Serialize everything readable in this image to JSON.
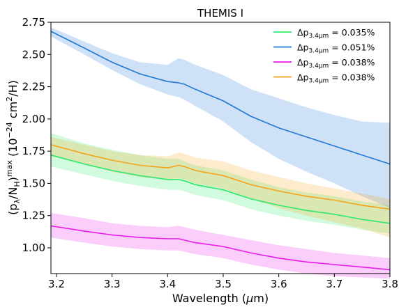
{
  "chart_data": {
    "type": "line",
    "title": "THEMIS I",
    "xlabel": "Wavelength (μm)",
    "ylabel": "(pλ/NH)max (10−24 cm2/H)",
    "xlim": [
      3.19,
      3.8
    ],
    "ylim": [
      0.8,
      2.75
    ],
    "xticks": [
      "3.2",
      "3.3",
      "3.4",
      "3.5",
      "3.6",
      "3.7",
      "3.8"
    ],
    "yticks": [
      "1.00",
      "1.25",
      "1.50",
      "1.75",
      "2.00",
      "2.25",
      "2.50",
      "2.75"
    ],
    "grid": false,
    "legend_position": "top-right",
    "series": [
      {
        "name": "Δp3.4μm = 0.035%",
        "legend_main": "Δp",
        "legend_sub": "3.4μm",
        "legend_value": " = 0.035%",
        "color": "#2ee86a",
        "x": [
          3.19,
          3.25,
          3.3,
          3.35,
          3.4,
          3.42,
          3.43,
          3.45,
          3.5,
          3.55,
          3.6,
          3.65,
          3.7,
          3.75,
          3.8
        ],
        "values": [
          1.72,
          1.65,
          1.6,
          1.56,
          1.53,
          1.53,
          1.52,
          1.49,
          1.45,
          1.38,
          1.33,
          1.29,
          1.26,
          1.22,
          1.19
        ],
        "lower": [
          1.63,
          1.57,
          1.52,
          1.48,
          1.45,
          1.45,
          1.44,
          1.41,
          1.37,
          1.3,
          1.25,
          1.21,
          1.18,
          1.14,
          1.11
        ],
        "upper": [
          1.89,
          1.81,
          1.76,
          1.72,
          1.69,
          1.69,
          1.67,
          1.64,
          1.6,
          1.53,
          1.47,
          1.43,
          1.4,
          1.36,
          1.33
        ]
      },
      {
        "name": "Δp3.4μm = 0.051%",
        "legend_main": "Δp",
        "legend_sub": "3.4μm",
        "legend_value": " = 0.051%",
        "color": "#1f77d4",
        "x": [
          3.19,
          3.25,
          3.3,
          3.35,
          3.4,
          3.42,
          3.43,
          3.45,
          3.5,
          3.55,
          3.6,
          3.65,
          3.7,
          3.75,
          3.8
        ],
        "values": [
          2.68,
          2.55,
          2.44,
          2.35,
          2.29,
          2.28,
          2.27,
          2.23,
          2.14,
          2.02,
          1.93,
          1.86,
          1.79,
          1.72,
          1.65
        ],
        "lower": [
          2.64,
          2.5,
          2.38,
          2.27,
          2.19,
          2.17,
          2.15,
          2.1,
          1.98,
          1.82,
          1.69,
          1.59,
          1.5,
          1.4,
          1.31
        ],
        "upper": [
          2.71,
          2.6,
          2.51,
          2.44,
          2.42,
          2.47,
          2.46,
          2.42,
          2.34,
          2.23,
          2.16,
          2.09,
          2.03,
          1.98,
          1.97
        ]
      },
      {
        "name": "Δp3.4μm = 0.038%",
        "legend_main": "Δp",
        "legend_sub": "3.4μm",
        "legend_value": " = 0.038%",
        "color": "#e81ce8",
        "x": [
          3.19,
          3.25,
          3.3,
          3.35,
          3.4,
          3.42,
          3.43,
          3.45,
          3.5,
          3.55,
          3.6,
          3.65,
          3.7,
          3.75,
          3.8
        ],
        "values": [
          1.17,
          1.13,
          1.1,
          1.08,
          1.07,
          1.07,
          1.06,
          1.04,
          1.01,
          0.96,
          0.92,
          0.89,
          0.87,
          0.85,
          0.83
        ],
        "lower": [
          1.08,
          1.04,
          1.01,
          0.99,
          0.98,
          0.98,
          0.97,
          0.95,
          0.92,
          0.87,
          0.83,
          0.8,
          0.78,
          0.77,
          0.76
        ],
        "upper": [
          1.27,
          1.23,
          1.19,
          1.17,
          1.16,
          1.17,
          1.16,
          1.14,
          1.1,
          1.06,
          1.02,
          0.99,
          0.96,
          0.94,
          0.92
        ]
      },
      {
        "name": "Δp3.4μm = 0.038%",
        "legend_main": "Δp",
        "legend_sub": "3.4μm",
        "legend_value": " = 0.038%",
        "color": "#f5a31a",
        "x": [
          3.19,
          3.25,
          3.3,
          3.35,
          3.4,
          3.42,
          3.43,
          3.45,
          3.5,
          3.55,
          3.6,
          3.65,
          3.7,
          3.75,
          3.8
        ],
        "values": [
          1.8,
          1.73,
          1.68,
          1.64,
          1.62,
          1.64,
          1.63,
          1.6,
          1.56,
          1.49,
          1.44,
          1.4,
          1.37,
          1.33,
          1.3
        ],
        "lower": [
          1.71,
          1.65,
          1.59,
          1.55,
          1.53,
          1.54,
          1.53,
          1.5,
          1.46,
          1.38,
          1.31,
          1.25,
          1.2,
          1.15,
          1.08
        ],
        "upper": [
          1.86,
          1.8,
          1.75,
          1.72,
          1.71,
          1.74,
          1.73,
          1.7,
          1.67,
          1.6,
          1.55,
          1.5,
          1.46,
          1.42,
          1.38
        ]
      }
    ]
  }
}
